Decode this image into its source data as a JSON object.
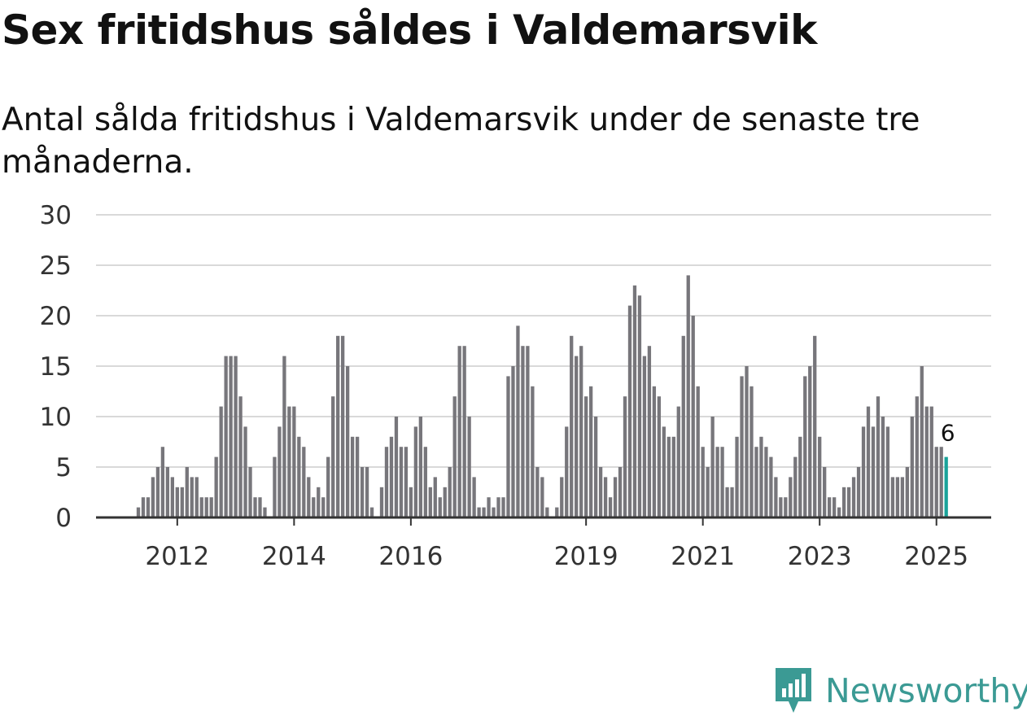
{
  "header": {
    "title": "Sex fritidshus såldes i Valdemarsvik",
    "subtitle": "Antal sålda fritidshus i Valdemarsvik under de senaste tre månaderna."
  },
  "brand": {
    "name": "Newsworthy",
    "logo_icon": "newsworthy-logo-icon",
    "color": "#3b9a94"
  },
  "chart_data": {
    "type": "bar",
    "x_start": "2011-05",
    "x_end": "2025-09",
    "x_unit": "month",
    "ylim": [
      0,
      30
    ],
    "yticks": [
      0,
      5,
      10,
      15,
      20,
      25,
      30
    ],
    "xticks": [
      "2012",
      "2014",
      "2016",
      "2019",
      "2021",
      "2023",
      "2025"
    ],
    "grid": true,
    "colors": {
      "bar": "#77767b",
      "highlight": "#1aa39a",
      "grid": "#d9d9d9",
      "axis": "#333333"
    },
    "highlight": {
      "value": 6,
      "label": "6"
    },
    "values": [
      1,
      2,
      2,
      4,
      5,
      7,
      5,
      4,
      3,
      3,
      5,
      4,
      4,
      2,
      2,
      2,
      6,
      11,
      16,
      16,
      16,
      12,
      9,
      5,
      2,
      2,
      1,
      0,
      6,
      9,
      16,
      11,
      11,
      8,
      7,
      4,
      2,
      3,
      2,
      6,
      12,
      18,
      18,
      15,
      8,
      8,
      5,
      5,
      1,
      0,
      3,
      7,
      8,
      10,
      7,
      7,
      3,
      9,
      10,
      7,
      3,
      4,
      2,
      3,
      5,
      12,
      17,
      17,
      10,
      4,
      1,
      1,
      2,
      1,
      2,
      2,
      14,
      15,
      19,
      17,
      17,
      13,
      5,
      4,
      1,
      0,
      1,
      4,
      9,
      18,
      16,
      17,
      12,
      13,
      10,
      5,
      4,
      2,
      4,
      5,
      12,
      21,
      23,
      22,
      16,
      17,
      13,
      12,
      9,
      8,
      8,
      11,
      18,
      24,
      20,
      13,
      7,
      5,
      10,
      7,
      7,
      3,
      3,
      8,
      14,
      15,
      13,
      7,
      8,
      7,
      6,
      4,
      2,
      2,
      4,
      6,
      8,
      14,
      15,
      18,
      8,
      5,
      2,
      2,
      1,
      3,
      3,
      4,
      5,
      9,
      11,
      9,
      12,
      10,
      9,
      4,
      4,
      4,
      5,
      10,
      12,
      15,
      11,
      11,
      7,
      7,
      6
    ]
  }
}
